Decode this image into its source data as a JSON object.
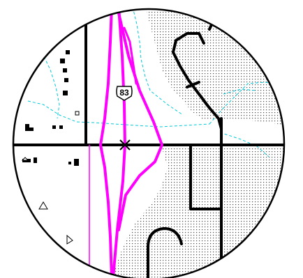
{
  "map": {
    "route_shield": "83",
    "colors": {
      "highway": "#ff00ff",
      "road": "#000000",
      "stream": "#00c8d8",
      "urban_fill_dots": "#444444",
      "background": "#ffffff"
    },
    "icons": {
      "route_shield": "us-route-shield-icon",
      "interchange": "interchange-x-icon",
      "buildings": "building-square-icon",
      "landmark": "triangle-landmark-icon"
    }
  }
}
